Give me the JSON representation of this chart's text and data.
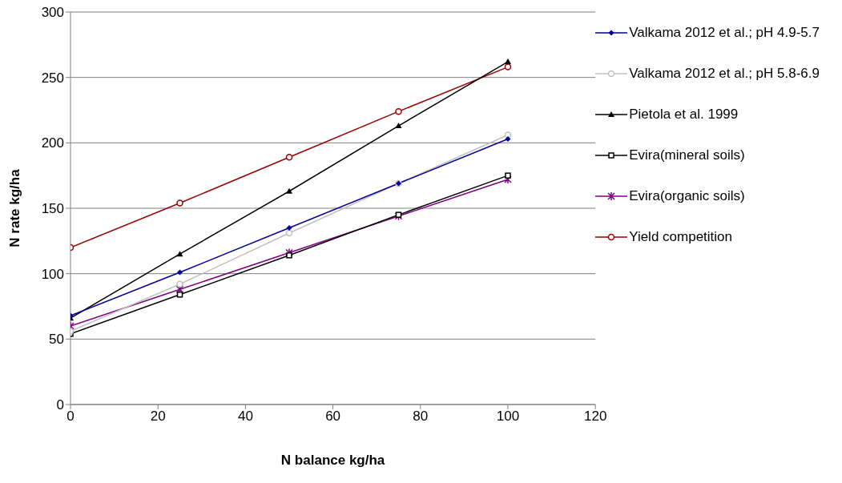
{
  "chart_data": {
    "type": "line",
    "xlabel": "N balance kg/ha",
    "ylabel": "N rate kg/ha",
    "x": [
      0,
      25,
      50,
      75,
      100
    ],
    "xlim": [
      0,
      120
    ],
    "xticks": [
      0,
      20,
      40,
      60,
      80,
      100,
      120
    ],
    "ylim": [
      0,
      300
    ],
    "yticks": [
      0,
      50,
      100,
      150,
      200,
      250,
      300
    ],
    "grid": "y",
    "legend": "right",
    "line_style": "solid",
    "series": [
      {
        "name": "Valkama 2012 et al.; pH 4.9-5.7",
        "color": "#000099",
        "marker": "diamond",
        "values": [
          68,
          101,
          135,
          169,
          203
        ]
      },
      {
        "name": "Valkama 2012 et al.; pH 5.8-6.9",
        "color": "#c0c0c0",
        "marker": "circle",
        "values": [
          56,
          92,
          131,
          169,
          206
        ]
      },
      {
        "name": "Pietola et al. 1999",
        "color": "#000000",
        "marker": "triangle",
        "values": [
          66,
          115,
          163,
          213,
          262
        ]
      },
      {
        "name": "Evira(mineral soils)",
        "color": "#000000",
        "marker": "square",
        "values": [
          54,
          84,
          114,
          145,
          175
        ]
      },
      {
        "name": "Evira(organic soils)",
        "color": "#800080",
        "marker": "cross",
        "values": [
          60,
          88,
          116,
          144,
          172
        ]
      },
      {
        "name": "Yield competition",
        "color": "#990000",
        "marker": "circle",
        "values": [
          120,
          154,
          189,
          224,
          258
        ]
      }
    ]
  }
}
